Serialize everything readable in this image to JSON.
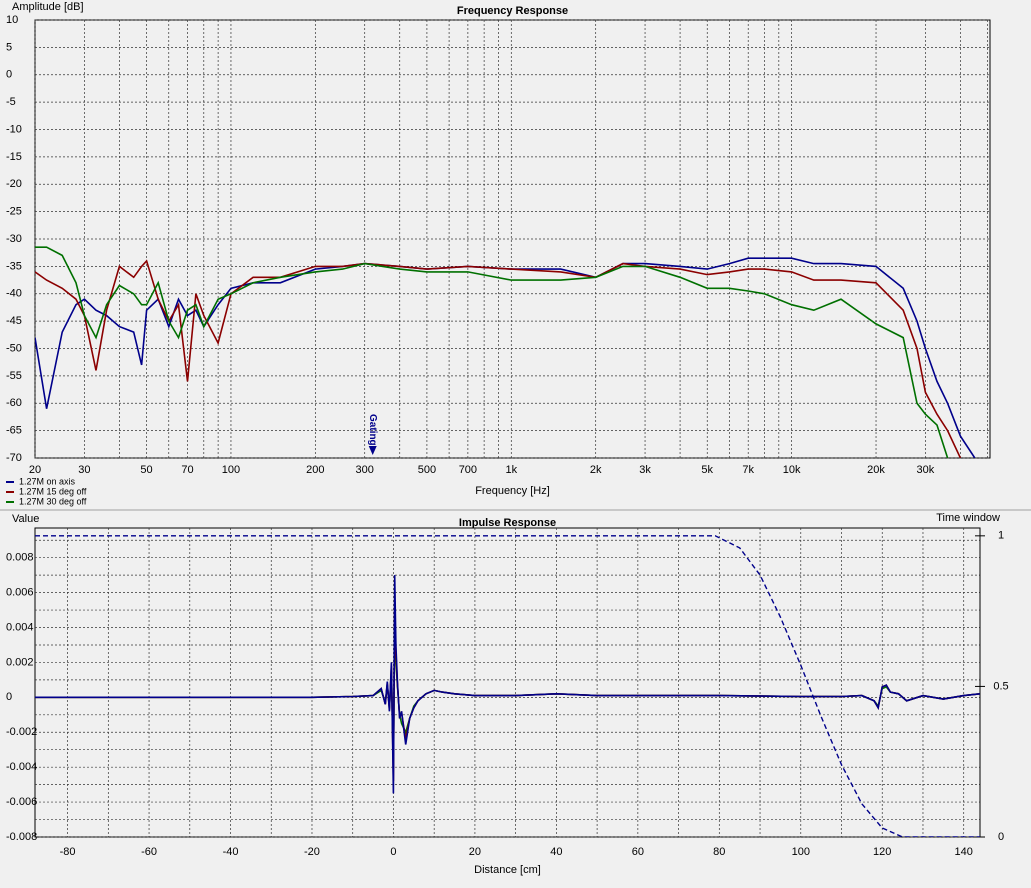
{
  "chart_data": [
    {
      "type": "line",
      "title": "Frequency Response",
      "ylabel": "Amplitude [dB]",
      "xlabel": "Frequency [Hz]",
      "xlog": true,
      "xlim": [
        20,
        51000
      ],
      "ylim": [
        -70,
        10
      ],
      "grid": true,
      "legend": "bottom-left",
      "xticks": [
        20,
        30,
        50,
        70,
        100,
        200,
        300,
        500,
        700,
        {
          "value": 1000,
          "label": "1k"
        },
        {
          "value": 2000,
          "label": "2k"
        },
        {
          "value": 3000,
          "label": "3k"
        },
        {
          "value": 5000,
          "label": "5k"
        },
        {
          "value": 7000,
          "label": "7k"
        },
        {
          "value": 10000,
          "label": "10k"
        },
        {
          "value": 20000,
          "label": "20k"
        },
        {
          "value": 30000,
          "label": "30k"
        }
      ],
      "xminorticks": [
        40,
        60,
        80,
        90,
        400,
        600,
        800,
        900,
        4000,
        6000,
        8000,
        9000,
        40000,
        50000
      ],
      "yticks": [
        10,
        5,
        0,
        -5,
        -10,
        -15,
        -20,
        -25,
        -30,
        -35,
        -40,
        -45,
        -50,
        -55,
        -60,
        -65,
        -70
      ],
      "annotations": [
        {
          "text": "Gating",
          "x": 300
        }
      ],
      "x": [
        20,
        22,
        25,
        28,
        30,
        33,
        36,
        40,
        45,
        48,
        50,
        55,
        60,
        65,
        70,
        75,
        80,
        90,
        100,
        120,
        150,
        200,
        250,
        300,
        400,
        500,
        700,
        1000,
        1500,
        2000,
        2500,
        3000,
        4000,
        5000,
        6000,
        7000,
        8000,
        10000,
        12000,
        15000,
        20000,
        25000,
        28000,
        30000,
        33000,
        36000,
        40000,
        45000
      ],
      "series": [
        {
          "name": "1.27M on axis",
          "color": "#00008b",
          "values": [
            -48,
            -61,
            -47,
            -42,
            -41,
            -43,
            -44,
            -46,
            -47,
            -53,
            -43,
            -41,
            -46,
            -41,
            -44,
            -43,
            -46,
            -42,
            -39,
            -38,
            -38,
            -35.5,
            -35,
            -34.5,
            -35,
            -35.5,
            -35,
            -35.5,
            -35.5,
            -37,
            -34.5,
            -34.5,
            -35,
            -35.5,
            -34.5,
            -33.5,
            -33.5,
            -33.5,
            -34.5,
            -34.5,
            -35,
            -39,
            -45,
            -50,
            -56,
            -60,
            -66,
            -70
          ]
        },
        {
          "name": "1.27M 15 deg off",
          "color": "#8b0000",
          "values": [
            -36,
            -37.5,
            -39,
            -41,
            -44,
            -54,
            -43,
            -35,
            -37,
            -35,
            -34,
            -41,
            -45,
            -42,
            -56,
            -40,
            -44,
            -49,
            -40,
            -37,
            -37,
            -35,
            -35,
            -34.5,
            -35,
            -35.5,
            -35,
            -35.5,
            -36,
            -37,
            -34.5,
            -35,
            -35.5,
            -36.5,
            -36,
            -35.5,
            -35.5,
            -36,
            -37.5,
            -37.5,
            -38,
            -43,
            -50,
            -58,
            -62,
            -65,
            -70,
            null
          ]
        },
        {
          "name": "1.27M 30 deg off",
          "color": "#007000",
          "values": [
            -31.5,
            -31.5,
            -33,
            -38,
            -44,
            -48,
            -42,
            -38.5,
            -40,
            -42,
            -42,
            -38,
            -45,
            -48,
            -43,
            -42,
            -46,
            -41,
            -40,
            -38,
            -37,
            -36,
            -35.5,
            -34.5,
            -35.5,
            -36,
            -36,
            -37.5,
            -37.5,
            -37,
            -35,
            -35,
            -37,
            -39,
            -39,
            -39.5,
            -40,
            -42,
            -43,
            -41,
            -45.5,
            -48,
            -60,
            -62,
            -64,
            -70,
            null,
            null
          ]
        }
      ]
    },
    {
      "type": "line",
      "title": "Impulse Response",
      "ylabel": "Value",
      "y2label": "Time window",
      "xlabel": "Distance [cm]",
      "xlim": [
        -88,
        144
      ],
      "ylim": [
        -0.008,
        0.0097
      ],
      "y2lim": [
        0,
        1.026
      ],
      "grid": true,
      "xticks": [
        -80,
        -60,
        -40,
        -20,
        0,
        20,
        40,
        60,
        80,
        100,
        120,
        140
      ],
      "xminorticks": [
        -70,
        -50,
        -30,
        -10,
        10,
        30,
        50,
        70,
        90,
        110,
        130
      ],
      "yticks": [
        0.008,
        0.006,
        0.004,
        0.002,
        0,
        -0.002,
        -0.004,
        -0.006,
        -0.008
      ],
      "yminorticks": [
        0.009,
        0.007,
        0.005,
        0.003,
        0.001,
        -0.001,
        -0.003,
        -0.005,
        -0.007
      ],
      "y2ticks": [
        0,
        0.5,
        1
      ],
      "x": [
        -88,
        -20,
        -10,
        -5,
        -3,
        -2,
        -1.5,
        -1,
        -0.5,
        0,
        0.3,
        0.6,
        1,
        1.5,
        2,
        3,
        4,
        5,
        6,
        8,
        10,
        12,
        15,
        20,
        30,
        40,
        50,
        60,
        80,
        100,
        110,
        115,
        118,
        119,
        120,
        121,
        122,
        124,
        126,
        130,
        135,
        140,
        144
      ],
      "series": [
        {
          "color": "#007000",
          "values": [
            0,
            0,
            5e-05,
            0.0001,
            0.0004,
            -0.0003,
            0.0007,
            -0.0006,
            0.0015,
            -0.004,
            0.0045,
            0.002,
            0.0006,
            -0.001,
            -0.0015,
            -0.002,
            -0.0012,
            -0.0005,
            -0.0002,
            0.0002,
            0.0004,
            0.0003,
            0.0002,
            0.0001,
            0.0001,
            0.0002,
            0.0001,
            0.0001,
            0.0001,
            5e-05,
            5e-05,
            0.0001,
            -0.0002,
            -0.0005,
            0.0005,
            0.0006,
            0.0003,
            0.0002,
            -0.0002,
            0.0001,
            -0.0001,
            0.0001,
            0.0002
          ]
        },
        {
          "color": "#8b0000",
          "values": [
            0,
            0,
            5e-05,
            0.0001,
            0.0005,
            -0.0004,
            0.0008,
            -0.0007,
            0.0018,
            -0.0048,
            0.0052,
            0.0025,
            0.0007,
            -0.0011,
            -0.0009,
            -0.0024,
            -0.0012,
            -0.0006,
            -0.0002,
            0.0002,
            0.0004,
            0.0003,
            0.0002,
            0.0001,
            0.0001,
            0.0002,
            0.0001,
            0.0001,
            0.0001,
            5e-05,
            5e-05,
            0.0001,
            -0.0002,
            -0.0006,
            0.0006,
            0.0007,
            0.0003,
            0.0002,
            -0.0002,
            0.0001,
            -0.0001,
            0.0001,
            0.0002
          ]
        },
        {
          "color": "#00008b",
          "values": [
            0,
            0,
            5e-05,
            0.0001,
            0.0005,
            -0.0004,
            0.0009,
            -0.0008,
            0.002,
            -0.0055,
            0.007,
            0.003,
            0.0008,
            -0.0012,
            -0.0008,
            -0.0027,
            -0.0012,
            -0.0006,
            -0.0002,
            0.0002,
            0.0004,
            0.0003,
            0.0002,
            0.0001,
            0.0001,
            0.0002,
            0.0001,
            0.0001,
            0.0001,
            5e-05,
            5e-05,
            0.0001,
            -0.0002,
            -0.0006,
            0.0006,
            0.0007,
            0.0003,
            0.0002,
            -0.0002,
            0.0001,
            -0.0001,
            0.0001,
            0.0002
          ]
        }
      ],
      "window": {
        "axis": "y2",
        "color": "#00008b",
        "dashed": true,
        "x": [
          -88,
          0,
          79,
          85,
          90,
          95,
          100,
          105,
          110,
          115,
          120,
          125,
          144
        ],
        "values": [
          1,
          1,
          1,
          0.96,
          0.87,
          0.73,
          0.57,
          0.4,
          0.24,
          0.11,
          0.03,
          0,
          0
        ]
      }
    }
  ]
}
